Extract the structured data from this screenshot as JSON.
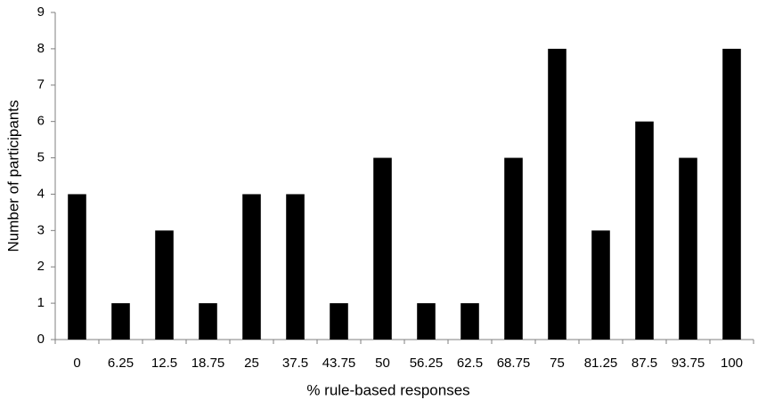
{
  "chart_data": {
    "type": "bar",
    "x_label": "% rule-based responses",
    "y_label": "Number of participants",
    "categories": [
      "0",
      "6.25",
      "12.5",
      "18.75",
      "25",
      "37.5",
      "43.75",
      "50",
      "56.25",
      "62.5",
      "68.75",
      "75",
      "81.25",
      "87.5",
      "93.75",
      "100"
    ],
    "values": [
      4,
      1,
      3,
      1,
      4,
      4,
      1,
      5,
      1,
      1,
      5,
      8,
      3,
      6,
      5,
      8
    ],
    "color": "#000000",
    "ylim": [
      0,
      9
    ],
    "yticks": [
      0,
      1,
      2,
      3,
      4,
      5,
      6,
      7,
      8,
      9
    ],
    "grid": false
  }
}
